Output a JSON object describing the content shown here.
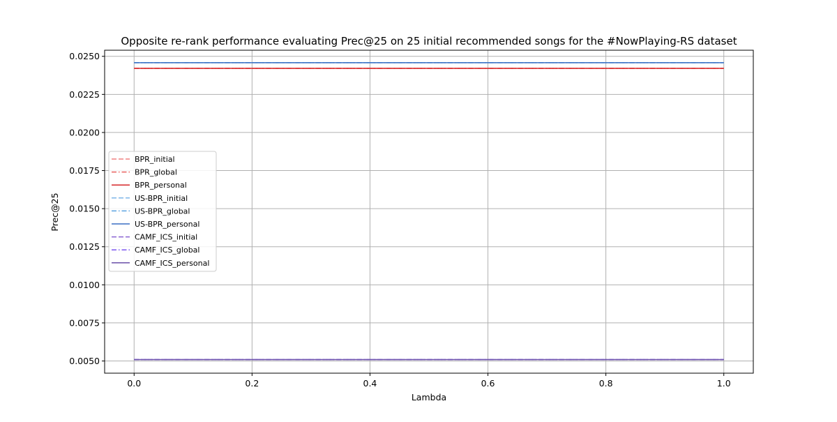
{
  "chart_data": {
    "type": "line",
    "title": "Opposite re-rank performance evaluating Prec@25 on 25 initial recommended songs for the #NowPlaying-RS dataset",
    "xlabel": "Lambda",
    "ylabel": "Prec@25",
    "xlim": [
      -0.05,
      1.05
    ],
    "ylim": [
      0.0042,
      0.0254
    ],
    "xticks": [
      0.0,
      0.2,
      0.4,
      0.6,
      0.8,
      1.0
    ],
    "xtick_labels": [
      "0.0",
      "0.2",
      "0.4",
      "0.6",
      "0.8",
      "1.0"
    ],
    "yticks": [
      0.005,
      0.0075,
      0.01,
      0.0125,
      0.015,
      0.0175,
      0.02,
      0.0225,
      0.025
    ],
    "ytick_labels": [
      "0.0050",
      "0.0075",
      "0.0100",
      "0.0125",
      "0.0150",
      "0.0175",
      "0.0200",
      "0.0225",
      "0.0250"
    ],
    "grid": true,
    "legend_position": "center-left",
    "x": [
      0.0,
      0.1,
      0.2,
      0.3,
      0.4,
      0.5,
      0.6,
      0.7,
      0.8,
      0.9,
      1.0
    ],
    "series": [
      {
        "name": "BPR_initial",
        "color": "#f08080",
        "style": "dashed",
        "values": [
          0.02421,
          0.02421,
          0.02421,
          0.02421,
          0.02421,
          0.02421,
          0.02421,
          0.02421,
          0.02421,
          0.02421,
          0.02421
        ]
      },
      {
        "name": "BPR_global",
        "color": "#e9615f",
        "style": "dashdot",
        "values": [
          0.02421,
          0.02421,
          0.02421,
          0.02421,
          0.02421,
          0.02421,
          0.02421,
          0.02421,
          0.02421,
          0.02421,
          0.02421
        ]
      },
      {
        "name": "BPR_personal",
        "color": "#d62728",
        "style": "solid",
        "values": [
          0.02421,
          0.02421,
          0.02421,
          0.02421,
          0.02421,
          0.02421,
          0.02421,
          0.02421,
          0.02421,
          0.02421,
          0.02421
        ]
      },
      {
        "name": "US-BPR_initial",
        "color": "#7eb6e8",
        "style": "dashed",
        "values": [
          0.02458,
          0.02458,
          0.02458,
          0.02458,
          0.02458,
          0.02458,
          0.02458,
          0.02458,
          0.02458,
          0.02458,
          0.02458
        ]
      },
      {
        "name": "US-BPR_global",
        "color": "#5aa2e0",
        "style": "dashdot",
        "values": [
          0.02458,
          0.02458,
          0.02458,
          0.02458,
          0.02458,
          0.02458,
          0.02458,
          0.02458,
          0.02458,
          0.02458,
          0.02458
        ]
      },
      {
        "name": "US-BPR_personal",
        "color": "#3a6fc4",
        "style": "solid",
        "values": [
          0.02458,
          0.02458,
          0.02458,
          0.02458,
          0.02458,
          0.02458,
          0.02458,
          0.02458,
          0.02458,
          0.02458,
          0.02458
        ]
      },
      {
        "name": "CAMF_ICS_initial",
        "color": "#8a63d2",
        "style": "dashed",
        "values": [
          0.00509,
          0.00509,
          0.00509,
          0.00509,
          0.00509,
          0.00509,
          0.00509,
          0.00509,
          0.00509,
          0.00509,
          0.00509
        ]
      },
      {
        "name": "CAMF_ICS_global",
        "color": "#7b55f0",
        "style": "dashdot",
        "values": [
          0.00509,
          0.00509,
          0.00509,
          0.00509,
          0.00509,
          0.00509,
          0.00509,
          0.00509,
          0.00509,
          0.00509,
          0.00509
        ]
      },
      {
        "name": "CAMF_ICS_personal",
        "color": "#6a4fa8",
        "style": "solid",
        "values": [
          0.00509,
          0.00509,
          0.00509,
          0.00509,
          0.00509,
          0.00509,
          0.00509,
          0.00509,
          0.00509,
          0.00509,
          0.00509
        ]
      }
    ]
  }
}
